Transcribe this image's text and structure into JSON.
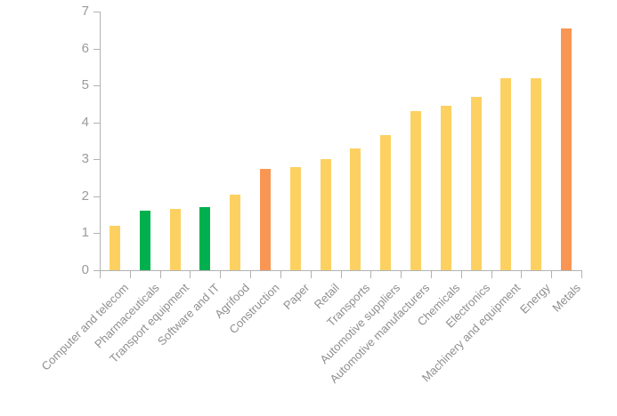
{
  "chart_data": {
    "type": "bar",
    "title": "",
    "xlabel": "",
    "ylabel": "",
    "categories": [
      "Computer and telecom",
      "Pharmaceuticals",
      "Transport equipment",
      "Software and IT",
      "Agrifood",
      "Construction",
      "Paper",
      "Retail",
      "Transports",
      "Automotive suppliers",
      "Automotive manufacturers",
      "Chemicals",
      "Electronics",
      "Machinery and equipment",
      "Energy",
      "Metals"
    ],
    "values": [
      1.2,
      1.6,
      1.65,
      1.7,
      2.05,
      2.75,
      2.8,
      3.0,
      3.3,
      3.65,
      4.3,
      4.45,
      4.7,
      5.2,
      5.2,
      6.55
    ],
    "bar_colors": [
      "#fcd162",
      "#00b04f",
      "#fcd162",
      "#00b04f",
      "#fcd162",
      "#fa9654",
      "#fcd162",
      "#fcd162",
      "#fcd162",
      "#fcd162",
      "#fcd162",
      "#fcd162",
      "#fcd162",
      "#fcd162",
      "#fcd162",
      "#fa9654"
    ],
    "palette": {
      "default_bar": "#fcd162",
      "highlight_green": "#00b04f",
      "highlight_orange": "#fa9654"
    },
    "ylim": [
      0,
      7
    ],
    "yticks": [
      "0",
      "1",
      "2",
      "3",
      "4",
      "5",
      "6",
      "7"
    ],
    "grid": false,
    "legend": null,
    "axis_color": "#b2b2b2",
    "ytick_label_color": "#9b9b9b",
    "xtick_label_color": "#8f8f8f",
    "x_labels_rotation_deg": -45,
    "background": "#ffffff"
  }
}
